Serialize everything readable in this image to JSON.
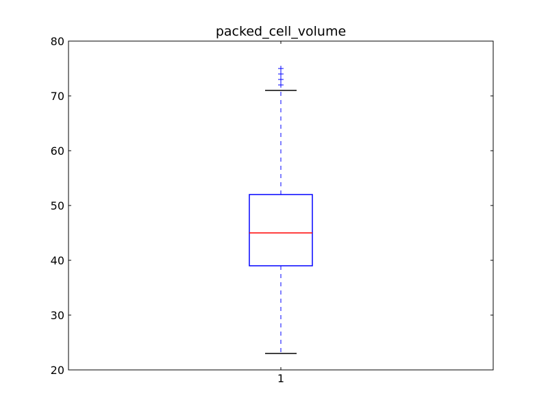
{
  "chart_data": {
    "type": "boxplot",
    "title": "packed_cell_volume",
    "xlabel": "",
    "ylabel": "",
    "ylim": [
      20,
      80
    ],
    "yticks": [
      20,
      30,
      40,
      50,
      60,
      70,
      80
    ],
    "categories": [
      "1"
    ],
    "grid": false,
    "box": {
      "whisker_low": 23,
      "q1": 39,
      "median": 45,
      "q3": 52,
      "whisker_high": 71,
      "outliers": [
        72,
        73,
        74,
        75
      ]
    },
    "colors": {
      "box": "#0000ff",
      "median": "#ff0000",
      "whisker": "#0000ff",
      "cap": "#000000",
      "flier": "#0000ff"
    }
  }
}
